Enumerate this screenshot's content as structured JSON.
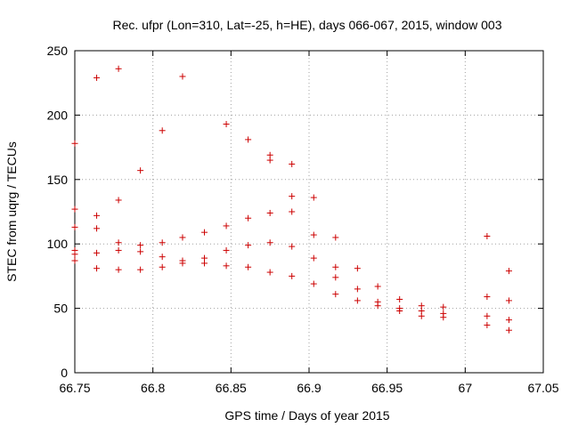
{
  "chart_data": {
    "type": "scatter",
    "title": "Rec. ufpr (Lon=310, Lat=-25, h=HE), days 066-067, 2015, window 003",
    "xlabel": "GPS time / Days of year 2015",
    "ylabel": "STEC from uqrg / TECUs",
    "xlim": [
      66.75,
      67.05
    ],
    "ylim": [
      0,
      250
    ],
    "xticks": [
      66.75,
      66.8,
      66.85,
      66.9,
      66.95,
      67,
      67.05
    ],
    "xtick_labels": [
      "66.75",
      "66.8",
      "66.85",
      "66.9",
      "66.95",
      "67",
      "67.05"
    ],
    "yticks": [
      0,
      50,
      100,
      150,
      200,
      250
    ],
    "ytick_labels": [
      "0",
      "50",
      "100",
      "150",
      "200",
      "250"
    ],
    "grid": true,
    "marker": "+",
    "color": "#cc0000",
    "series": [
      {
        "name": "STEC",
        "x": [
          66.75,
          66.75,
          66.75,
          66.75,
          66.75,
          66.75,
          66.764,
          66.764,
          66.764,
          66.764,
          66.764,
          66.778,
          66.778,
          66.778,
          66.778,
          66.778,
          66.792,
          66.792,
          66.792,
          66.792,
          66.806,
          66.806,
          66.806,
          66.806,
          66.819,
          66.819,
          66.819,
          66.819,
          66.833,
          66.833,
          66.833,
          66.847,
          66.847,
          66.847,
          66.847,
          66.861,
          66.861,
          66.861,
          66.861,
          66.875,
          66.875,
          66.875,
          66.875,
          66.875,
          66.889,
          66.889,
          66.889,
          66.889,
          66.889,
          66.903,
          66.903,
          66.903,
          66.903,
          66.917,
          66.917,
          66.917,
          66.917,
          66.931,
          66.931,
          66.931,
          66.944,
          66.944,
          66.944,
          66.958,
          66.958,
          66.958,
          66.972,
          66.972,
          66.972,
          66.986,
          66.986,
          66.986,
          67.014,
          67.014,
          67.014,
          67.014,
          67.028,
          67.028,
          67.028,
          67.028
        ],
        "y": [
          178,
          127,
          113,
          95,
          92,
          87,
          229,
          122,
          112,
          93,
          81,
          236,
          134,
          101,
          95,
          80,
          157,
          99,
          94,
          80,
          188,
          101,
          90,
          82,
          230,
          105,
          87,
          85,
          109,
          89,
          85,
          193,
          114,
          95,
          83,
          181,
          120,
          99,
          82,
          169,
          165,
          124,
          101,
          78,
          162,
          137,
          125,
          98,
          75,
          136,
          107,
          89,
          69,
          105,
          82,
          74,
          61,
          81,
          65,
          56,
          67,
          55,
          52,
          57,
          50,
          48,
          52,
          48,
          44,
          51,
          46,
          43,
          106,
          59,
          44,
          37,
          79,
          56,
          41,
          33
        ]
      }
    ]
  }
}
